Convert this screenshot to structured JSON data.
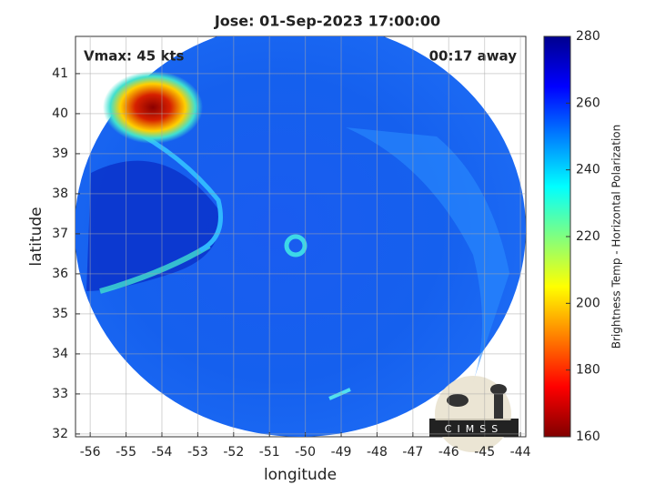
{
  "map": {
    "title": "Jose: 01-Sep-2023 17:00:00",
    "annotation_left": "Vmax: 45 kts",
    "annotation_right": "00:17 away",
    "xlabel": "longitude",
    "ylabel": "latitude",
    "xlim": [
      -56.41,
      -43.85
    ],
    "ylim": [
      31.93,
      41.93
    ],
    "xticks": [
      -56,
      -55,
      -54,
      -53,
      -52,
      -51,
      -50,
      -49,
      -48,
      -47,
      -46,
      -45,
      -44
    ],
    "yticks": [
      32,
      33,
      34,
      35,
      36,
      37,
      38,
      39,
      40,
      41
    ],
    "grid": true,
    "colorbar": {
      "label": "Brightness Temp - Horizontal Polarization",
      "lim": [
        160,
        280
      ],
      "ticks": [
        160,
        180,
        200,
        220,
        240,
        260,
        280
      ]
    },
    "logo": "CIMSS"
  }
}
